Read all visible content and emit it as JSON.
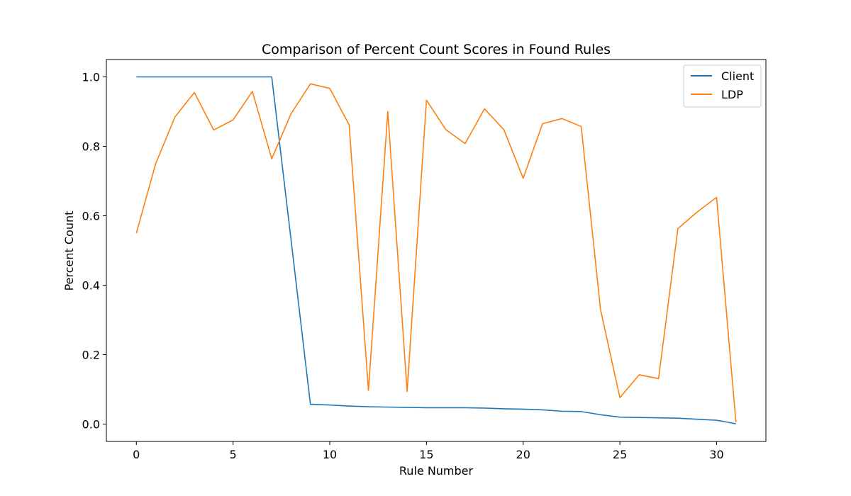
{
  "chart_data": {
    "type": "line",
    "title": "Comparison of Percent Count Scores in Found Rules",
    "xlabel": "Rule Number",
    "ylabel": "Percent Count",
    "xlim": [
      -1.55,
      32.55
    ],
    "ylim": [
      -0.05,
      1.05
    ],
    "xticks": [
      0,
      5,
      10,
      15,
      20,
      25,
      30
    ],
    "yticks": [
      0.0,
      0.2,
      0.4,
      0.6,
      0.8,
      1.0
    ],
    "grid": false,
    "legend_position": "top-right",
    "x": [
      0,
      1,
      2,
      3,
      4,
      5,
      6,
      7,
      8,
      9,
      10,
      11,
      12,
      13,
      14,
      15,
      16,
      17,
      18,
      19,
      20,
      21,
      22,
      23,
      24,
      25,
      26,
      27,
      28,
      29,
      30,
      31
    ],
    "series": [
      {
        "name": "Client",
        "color": "#1f77b4",
        "values": [
          1.0,
          1.0,
          1.0,
          1.0,
          1.0,
          1.0,
          1.0,
          1.0,
          0.53,
          0.057,
          0.055,
          0.052,
          0.05,
          0.049,
          0.048,
          0.047,
          0.047,
          0.047,
          0.046,
          0.044,
          0.043,
          0.041,
          0.037,
          0.036,
          0.027,
          0.02,
          0.019,
          0.018,
          0.017,
          0.014,
          0.011,
          0.001
        ]
      },
      {
        "name": "LDP",
        "color": "#ff7f0e",
        "values": [
          0.55,
          0.75,
          0.885,
          0.955,
          0.847,
          0.876,
          0.958,
          0.764,
          0.894,
          0.98,
          0.967,
          0.862,
          0.097,
          0.9,
          0.094,
          0.933,
          0.848,
          0.808,
          0.908,
          0.848,
          0.708,
          0.865,
          0.88,
          0.857,
          0.33,
          0.076,
          0.142,
          0.131,
          0.563,
          0.611,
          0.653,
          0.005
        ]
      }
    ]
  }
}
